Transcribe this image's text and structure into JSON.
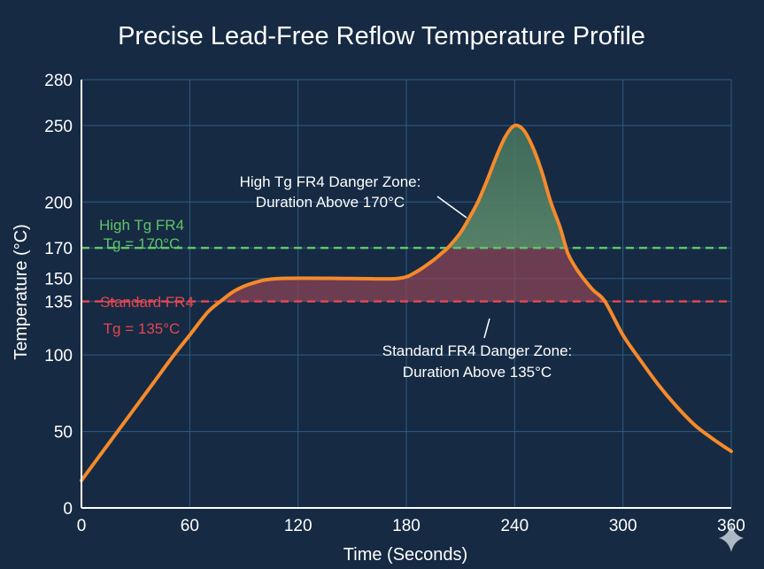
{
  "colors": {
    "background": "#162a43",
    "grid": "#2c5d86",
    "curve": "#f58a2a",
    "high_tg": "#5fc46a",
    "standard": "#e2474f",
    "fill_standard": "#8a4456",
    "fill_high": "#5c8a6a"
  },
  "chart_data": {
    "type": "line",
    "title": "Precise Lead-Free Reflow Temperature Profile",
    "xlabel": "Time (Seconds)",
    "ylabel": "Temperature (°C)",
    "xlim": [
      0,
      360
    ],
    "ylim": [
      0,
      280
    ],
    "x_ticks": [
      0,
      60,
      120,
      180,
      240,
      300,
      360
    ],
    "y_ticks": [
      0,
      50,
      100,
      135,
      150,
      170,
      200,
      250,
      280
    ],
    "grid": true,
    "series": [
      {
        "points": [
          [
            0,
            18
          ],
          [
            10,
            34
          ],
          [
            20,
            50
          ],
          [
            30,
            66
          ],
          [
            40,
            82
          ],
          [
            50,
            98
          ],
          [
            60,
            113
          ],
          [
            70,
            128
          ],
          [
            77,
            135
          ],
          [
            85,
            142
          ],
          [
            95,
            147
          ],
          [
            110,
            150
          ],
          [
            150,
            150
          ],
          [
            175,
            150
          ],
          [
            185,
            154
          ],
          [
            195,
            162
          ],
          [
            200,
            167
          ],
          [
            203,
            170
          ],
          [
            210,
            180
          ],
          [
            216,
            192
          ],
          [
            220,
            201
          ],
          [
            225,
            215
          ],
          [
            230,
            230
          ],
          [
            235,
            243
          ],
          [
            240,
            250
          ],
          [
            245,
            247
          ],
          [
            250,
            236
          ],
          [
            255,
            220
          ],
          [
            260,
            200
          ],
          [
            265,
            184
          ],
          [
            268,
            172
          ],
          [
            270,
            165
          ],
          [
            275,
            155
          ],
          [
            283,
            143
          ],
          [
            290,
            135
          ],
          [
            300,
            113
          ],
          [
            310,
            96
          ],
          [
            320,
            80
          ],
          [
            330,
            66
          ],
          [
            340,
            54
          ],
          [
            350,
            45
          ],
          [
            360,
            37
          ]
        ]
      }
    ],
    "reference_lines": [
      {
        "y": 170,
        "label_line1": "High Tg FR4",
        "label_line2": "Tg = 170°C",
        "color": "#5fc46a"
      },
      {
        "y": 135,
        "label_line1": "Standard FR4",
        "label_line2": "Tg = 135°C",
        "color": "#e2474f"
      }
    ],
    "annotations": [
      {
        "line1": "High Tg FR4 Danger Zone:",
        "line2": "Duration Above 170°C"
      },
      {
        "line1": "Standard FR4 Danger Zone:",
        "line2": "Duration Above 135°C"
      }
    ]
  }
}
